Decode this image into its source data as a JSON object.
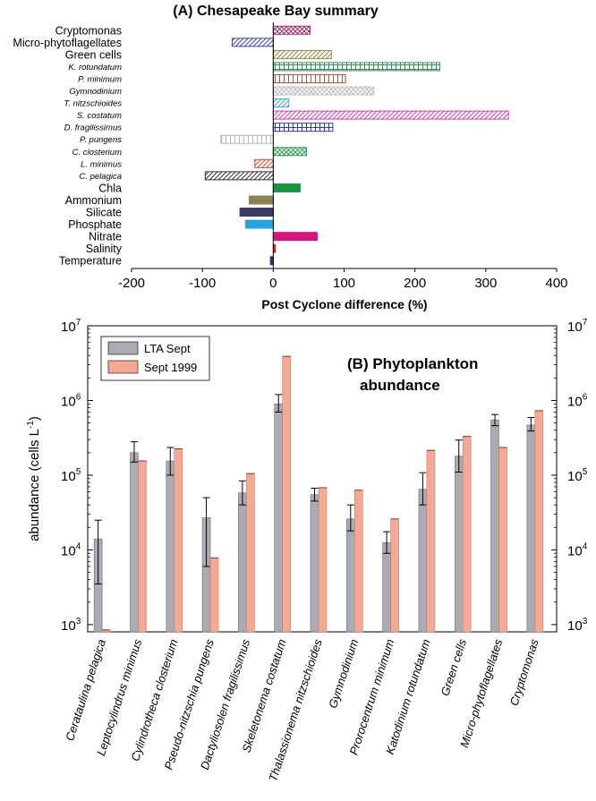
{
  "chart_data": [
    {
      "type": "bar",
      "orientation": "horizontal",
      "title": "(A) Chesapeake Bay summary",
      "xlabel": "Post Cyclone difference (%)",
      "ylabel": "",
      "xlim": [
        -200,
        400
      ],
      "xticks": [
        -200,
        -100,
        0,
        100,
        200,
        300,
        400
      ],
      "bars": [
        {
          "label": "Cryptomonas",
          "value": 52,
          "italic": false,
          "pattern": "crosshatch",
          "color": "#9b2c6e"
        },
        {
          "label": "Micro-phytoflagellates",
          "value": -58,
          "italic": false,
          "pattern": "diag-back",
          "color": "#3d4aa0"
        },
        {
          "label": "Green cells",
          "value": 82,
          "italic": false,
          "pattern": "diag-back",
          "color": "#8c8a3c"
        },
        {
          "label": "K. rotundatum",
          "value": 235,
          "italic": true,
          "pattern": "grid",
          "color": "#3d8a5c"
        },
        {
          "label": "P. minimum",
          "value": 102,
          "italic": true,
          "pattern": "vertical",
          "color": "#b8503a"
        },
        {
          "label": "Gymnodinium",
          "value": 142,
          "italic": true,
          "pattern": "crosshatch",
          "color": "#bfbfbf"
        },
        {
          "label": "T. nitzschioides",
          "value": 22,
          "italic": true,
          "pattern": "diag-back",
          "color": "#38a8e0"
        },
        {
          "label": "S. costatum",
          "value": 332,
          "italic": true,
          "pattern": "diag-back",
          "color": "#d03cb0"
        },
        {
          "label": "D. fragilissimus",
          "value": 84,
          "italic": true,
          "pattern": "grid",
          "color": "#2c3a9c"
        },
        {
          "label": "P. pungens",
          "value": -74,
          "italic": true,
          "pattern": "vertical",
          "color": "#b5b5b5"
        },
        {
          "label": "C. closterium",
          "value": 47,
          "italic": true,
          "pattern": "crosshatch",
          "color": "#2e9b56"
        },
        {
          "label": "L. minimus",
          "value": -26,
          "italic": true,
          "pattern": "diag-back",
          "color": "#d8493c"
        },
        {
          "label": "C. pelagica",
          "value": -96,
          "italic": true,
          "pattern": "diag-back",
          "color": "#333333"
        },
        {
          "label": "Chla",
          "value": 38,
          "italic": false,
          "pattern": "solid",
          "color": "#1a9440"
        },
        {
          "label": "Ammonium",
          "value": -34,
          "italic": false,
          "pattern": "solid",
          "color": "#8c8256"
        },
        {
          "label": "Silicate",
          "value": -47,
          "italic": false,
          "pattern": "solid",
          "color": "#3b3a66"
        },
        {
          "label": "Phosphate",
          "value": -39,
          "italic": false,
          "pattern": "solid",
          "color": "#29a3de"
        },
        {
          "label": "Nitrate",
          "value": 62,
          "italic": false,
          "pattern": "solid",
          "color": "#d6157f"
        },
        {
          "label": "Salinity",
          "value": 3,
          "italic": false,
          "pattern": "solid",
          "color": "#cc2222"
        },
        {
          "label": "Temperature",
          "value": -4,
          "italic": false,
          "pattern": "solid",
          "color": "#2a3280"
        }
      ]
    },
    {
      "type": "bar",
      "title": "(B) Phytoplankton abundance",
      "title_lines": [
        "(B) Phytoplankton",
        "abundance"
      ],
      "ylabel": "abundance (cells L",
      "ylabel_sup": "-1",
      "ylabel_close": ")",
      "yscale": "log",
      "ylim": [
        800,
        10000000
      ],
      "ytick_exponents": [
        3,
        4,
        5,
        6,
        7
      ],
      "ytick_base": "10",
      "categories": [
        "Cerataulina pelagica",
        "Leptocylindrus minimus",
        "Cylindrotheca closterium",
        "Pseudo-nitzschia pungens",
        "Dactyliosolen fragilissimus",
        "Skeletonema costatum",
        "Thalassionema nitzschioides",
        "Gymnodinium",
        "Prorocentrum minimum",
        "Katodinium rotundatum",
        "Green cells",
        "Micro-phytoflagellates",
        "Cryptomonas"
      ],
      "series": [
        {
          "name": "LTA Sept",
          "color": "#a9acb3",
          "values": [
            14000,
            200000,
            155000,
            27000,
            58000,
            900000,
            55000,
            26000,
            12500,
            65000,
            180000,
            550000,
            470000
          ],
          "error_low": [
            3500,
            150000,
            100000,
            6000,
            40000,
            700000,
            45000,
            18000,
            9000,
            40000,
            110000,
            460000,
            390000
          ],
          "error_high": [
            25000,
            280000,
            235000,
            50000,
            84000,
            1200000,
            67000,
            40000,
            17500,
            108000,
            295000,
            650000,
            590000
          ]
        },
        {
          "name": "Sept 1999",
          "color": "#f5a893",
          "values": [
            850,
            155000,
            225000,
            7800,
            105000,
            3900000,
            68000,
            63000,
            26000,
            215000,
            330000,
            235000,
            730000
          ]
        }
      ]
    }
  ]
}
